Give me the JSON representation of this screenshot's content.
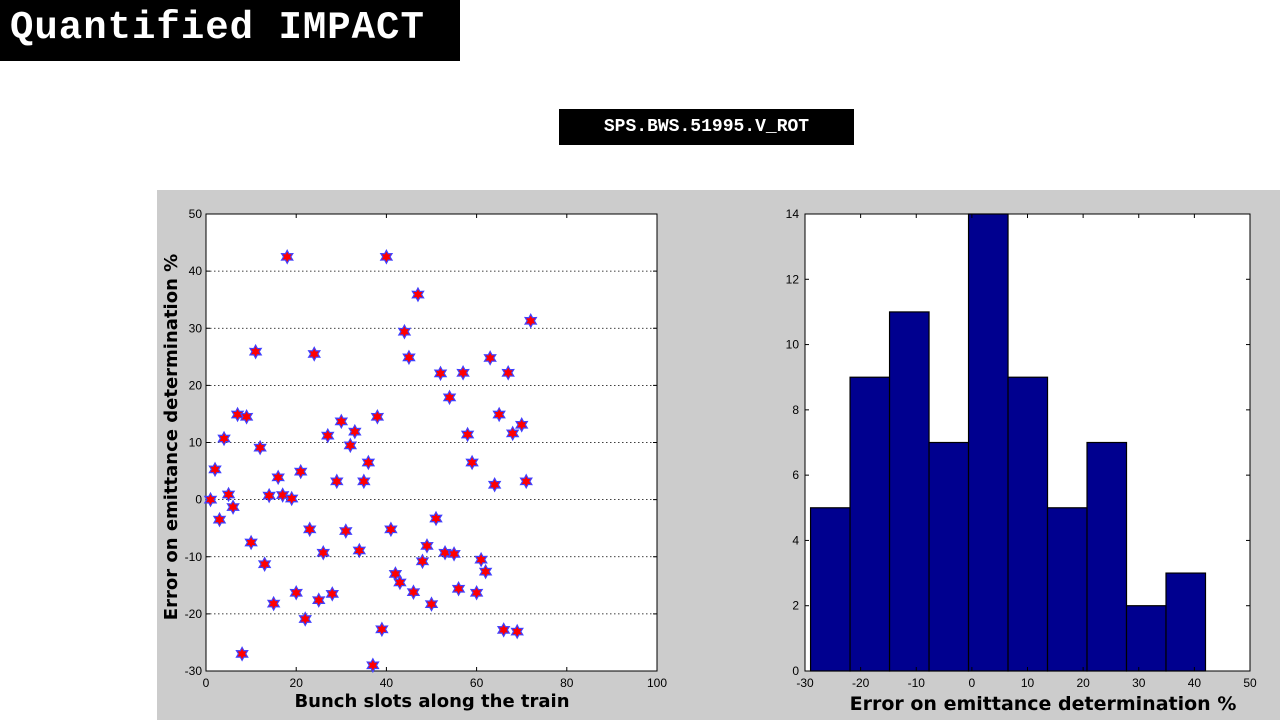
{
  "slide": {
    "title": "Quantified IMPACT",
    "device": "SPS.BWS.51995.V_ROT"
  },
  "chart_data": [
    {
      "type": "scatter",
      "xlabel": "Bunch slots along the train",
      "ylabel": "Error on emittance determination %",
      "xlim": [
        0,
        100
      ],
      "ylim": [
        -30,
        50
      ],
      "xticks": [
        0,
        20,
        40,
        60,
        80,
        100
      ],
      "yticks": [
        -30,
        -20,
        -10,
        0,
        10,
        20,
        30,
        40,
        50
      ],
      "grid": "horizontal dotted",
      "marker": {
        "shape": "star",
        "fill": "#ff0000",
        "edge": "#4040ff"
      },
      "points": [
        [
          1,
          0
        ],
        [
          2,
          5.3
        ],
        [
          3,
          -3.5
        ],
        [
          4,
          10.7
        ],
        [
          5,
          0.9
        ],
        [
          6,
          -1.3
        ],
        [
          7,
          14.9
        ],
        [
          8,
          -27
        ],
        [
          9,
          14.5
        ],
        [
          10,
          -7.5
        ],
        [
          11,
          25.9
        ],
        [
          12,
          9.1
        ],
        [
          13,
          -11.3
        ],
        [
          14,
          0.7
        ],
        [
          15,
          -18.2
        ],
        [
          16,
          3.9
        ],
        [
          17,
          0.8
        ],
        [
          18,
          42.5
        ],
        [
          19,
          0.2
        ],
        [
          20,
          -16.3
        ],
        [
          21,
          4.9
        ],
        [
          22,
          -20.9
        ],
        [
          23,
          -5.2
        ],
        [
          24,
          25.5
        ],
        [
          25,
          -17.6
        ],
        [
          26,
          -9.3
        ],
        [
          27,
          11.2
        ],
        [
          28,
          -16.5
        ],
        [
          29,
          3.2
        ],
        [
          30,
          13.7
        ],
        [
          31,
          -5.5
        ],
        [
          32,
          9.5
        ],
        [
          33,
          11.9
        ],
        [
          34,
          -8.9
        ],
        [
          35,
          3.2
        ],
        [
          36,
          6.5
        ],
        [
          37,
          -29
        ],
        [
          38,
          14.5
        ],
        [
          39,
          -22.7
        ],
        [
          40,
          42.5
        ],
        [
          41,
          -5.2
        ],
        [
          42,
          -13
        ],
        [
          43,
          -14.5
        ],
        [
          44,
          29.4
        ],
        [
          45,
          24.9
        ],
        [
          46,
          -16.2
        ],
        [
          47,
          35.9
        ],
        [
          48,
          -10.8
        ],
        [
          49,
          -8.1
        ],
        [
          50,
          -18.3
        ],
        [
          51,
          -3.3
        ],
        [
          52,
          22.1
        ],
        [
          53,
          -9.3
        ],
        [
          54,
          17.9
        ],
        [
          55,
          -9.5
        ],
        [
          56,
          -15.6
        ],
        [
          57,
          22.2
        ],
        [
          58,
          11.4
        ],
        [
          59,
          6.5
        ],
        [
          60,
          -16.3
        ],
        [
          61,
          -10.5
        ],
        [
          62,
          -12.6
        ],
        [
          63,
          24.8
        ],
        [
          64,
          2.6
        ],
        [
          65,
          14.9
        ],
        [
          66,
          -22.8
        ],
        [
          67,
          22.2
        ],
        [
          68,
          11.6
        ],
        [
          69,
          -23.1
        ],
        [
          70,
          13.1
        ],
        [
          71,
          3.2
        ],
        [
          72,
          31.3
        ]
      ]
    },
    {
      "type": "bar",
      "subtype": "histogram",
      "xlabel": "Error on emittance determination %",
      "ylabel": "",
      "xlim": [
        -30,
        50
      ],
      "ylim": [
        0,
        14
      ],
      "xticks": [
        -30,
        -20,
        -10,
        0,
        10,
        20,
        30,
        40,
        50
      ],
      "yticks": [
        0,
        2,
        4,
        6,
        8,
        10,
        12,
        14
      ],
      "bar_color": "#00008f",
      "bin_edges": [
        -29,
        -21.9,
        -14.8,
        -7.7,
        -0.6,
        6.5,
        13.6,
        20.7,
        27.8,
        34.9,
        42.0
      ],
      "values": [
        5,
        9,
        11,
        7,
        14,
        9,
        5,
        7,
        2,
        3
      ]
    }
  ]
}
